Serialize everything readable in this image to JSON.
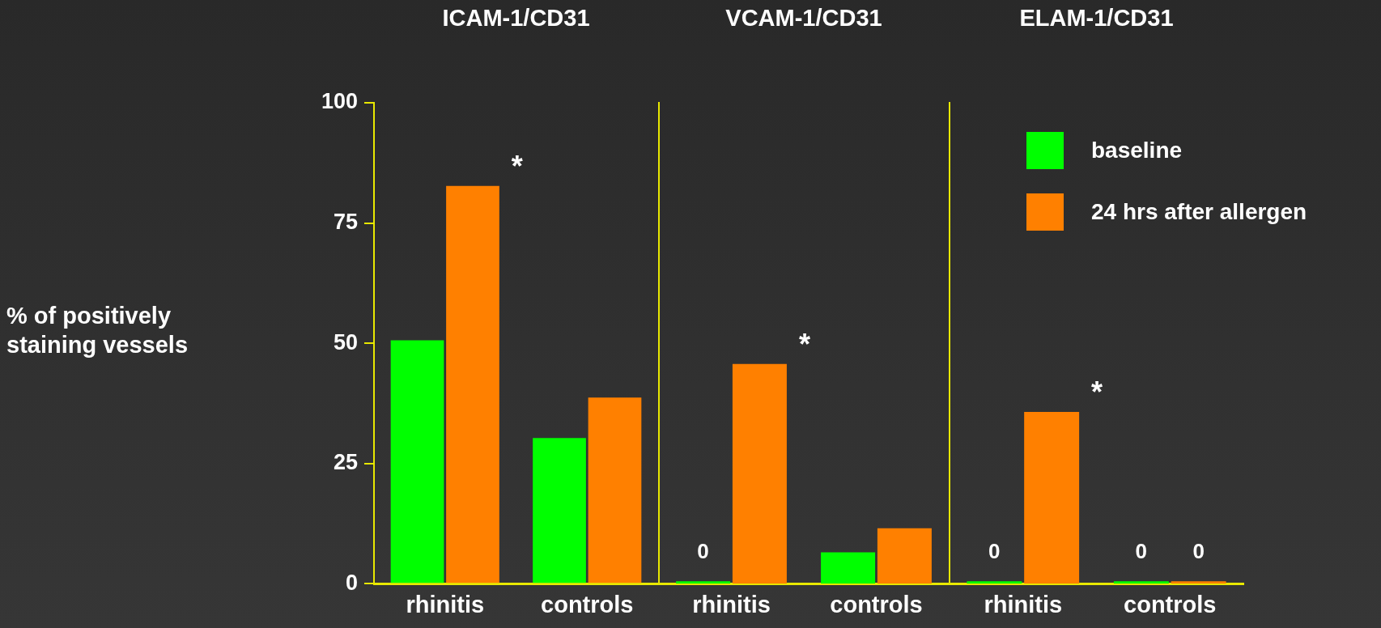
{
  "chart_data": [
    {
      "type": "bar",
      "title": "ICAM-1/CD31",
      "ylabel": "% of positively staining vessels",
      "categories": [
        "rhinitis",
        "controls"
      ],
      "series": [
        {
          "color": "#00ff00",
          "values": [
            50.6,
            30.3
          ]
        },
        {
          "color": "#ff8000",
          "values": [
            82.7,
            38.7
          ]
        }
      ],
      "ylim": [
        0,
        100
      ],
      "yticks": [
        0,
        25,
        50,
        75,
        100
      ],
      "grid": false,
      "annotations": [
        "*"
      ]
    },
    {
      "type": "bar",
      "title": "VCAM-1/CD31",
      "categories": [
        "rhinitis",
        "controls"
      ],
      "series": [
        {
          "color": "#00ff00",
          "values": [
            0,
            6.5
          ],
          "value_labels": [
            "0",
            null
          ]
        },
        {
          "color": "#ff8000",
          "values": [
            45.7,
            11.5
          ]
        }
      ],
      "ylim": [
        0,
        100
      ],
      "yticks": [
        0,
        25,
        50,
        75,
        100
      ],
      "tick_labels": "x",
      "grid": false,
      "annotations": [
        "*"
      ]
    },
    {
      "type": "bar",
      "title": "ELAM-1/CD31",
      "categories": [
        "rhinitis",
        "controls"
      ],
      "series": [
        {
          "name": "baseline",
          "color": "#00ff00",
          "values": [
            0,
            0
          ],
          "value_labels": [
            "0",
            "0"
          ]
        },
        {
          "name": "24 hrs after allergen",
          "color": "#ff8000",
          "values": [
            35.7,
            0
          ],
          "value_labels": [
            null,
            "0"
          ]
        }
      ],
      "ylim": [
        0,
        100
      ],
      "yticks": [
        0,
        25,
        50,
        75,
        100
      ],
      "tick_labels": "x",
      "grid": false,
      "legend": "top right",
      "annotations": [
        "*"
      ]
    }
  ]
}
